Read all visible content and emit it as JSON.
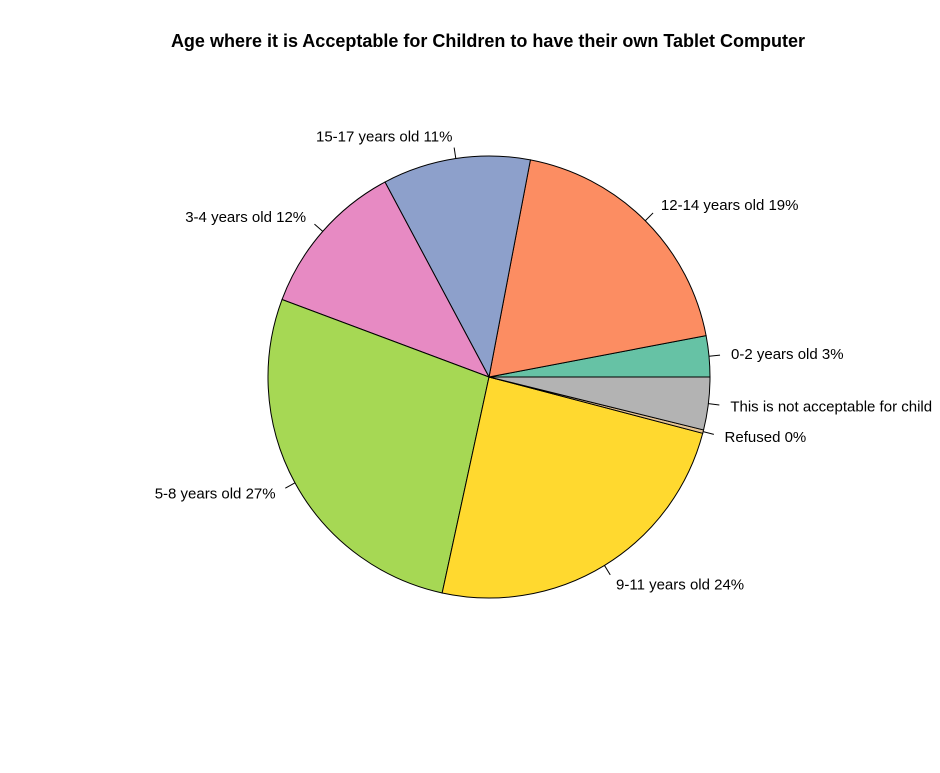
{
  "chart_data": {
    "type": "pie",
    "title": "Age where it is Acceptable for Children to have their own Tablet Computer",
    "slices": [
      {
        "label": "0-2 years old 3%",
        "value": 3.0,
        "color": "#66C2A5"
      },
      {
        "label": "12-14 years old 19%",
        "value": 19.0,
        "color": "#FC8D62"
      },
      {
        "label": "15-17 years old 11%",
        "value": 10.8,
        "color": "#8DA0CB"
      },
      {
        "label": "3-4 years old 12%",
        "value": 11.5,
        "color": "#E78AC3"
      },
      {
        "label": "5-8 years old 27%",
        "value": 27.3,
        "color": "#A6D854"
      },
      {
        "label": "9-11 years old 24%",
        "value": 24.3,
        "color": "#FFD92F"
      },
      {
        "label": "Refused 0%",
        "value": 0.25,
        "color": "#E5C494"
      },
      {
        "label": "This is not acceptable for child",
        "value": 3.85,
        "color": "#B3B3B3"
      }
    ]
  }
}
